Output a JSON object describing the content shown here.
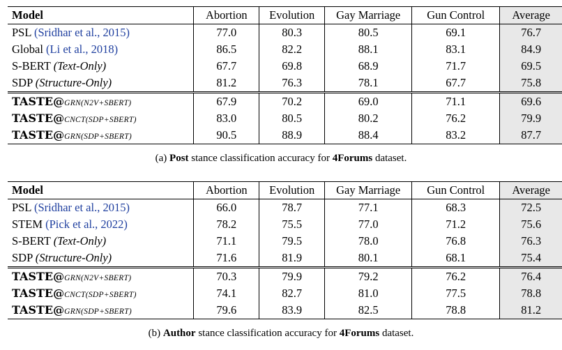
{
  "columns": [
    "Model",
    "Abortion",
    "Evolution",
    "Gay Marriage",
    "Gun Control",
    "Average"
  ],
  "table_a": {
    "rows": [
      {
        "name": "PSL ",
        "cite": "(Sridhar et al., 2015)",
        "values": [
          "77.0",
          "80.3",
          "80.5",
          "69.1",
          "76.7"
        ]
      },
      {
        "name": "Global ",
        "cite": "(Li et al., 2018)",
        "values": [
          "86.5",
          "82.2",
          "88.1",
          "83.1",
          "84.9"
        ]
      },
      {
        "name": "S-BERT ",
        "note": "(Text-Only)",
        "values": [
          "67.7",
          "69.8",
          "68.9",
          "71.7",
          "69.5"
        ]
      },
      {
        "name": "SDP ",
        "note": "(Structure-Only)",
        "values": [
          "81.2",
          "76.3",
          "78.1",
          "67.7",
          "75.8"
        ]
      },
      {
        "taste": "TASTE@",
        "sub": "GRN(N2V+SBERT)",
        "values": [
          "67.9",
          "70.2",
          "69.0",
          "71.1",
          "69.6"
        ]
      },
      {
        "taste": "TASTE@",
        "sub": "CNCT(SDP+SBERT)",
        "values": [
          "83.0",
          "80.5",
          "80.2",
          "76.2",
          "79.9"
        ]
      },
      {
        "taste": "TASTE@",
        "sub": "GRN(SDP+SBERT)",
        "values": [
          "90.5",
          "88.9",
          "88.4",
          "83.2",
          "87.7"
        ]
      }
    ],
    "caption": {
      "prefix": "(a) ",
      "bold1": "Post",
      "middle": " stance classification accuracy for ",
      "bold2": "4Forums",
      "suffix": " dataset."
    }
  },
  "table_b": {
    "rows": [
      {
        "name": "PSL ",
        "cite": "(Sridhar et al., 2015)",
        "values": [
          "66.0",
          "78.7",
          "77.1",
          "68.3",
          "72.5"
        ]
      },
      {
        "name": "STEM ",
        "cite": "(Pick et al., 2022)",
        "values": [
          "78.2",
          "75.5",
          "77.0",
          "71.2",
          "75.6"
        ]
      },
      {
        "name": "S-BERT ",
        "note": "(Text-Only)",
        "values": [
          "71.1",
          "79.5",
          "78.0",
          "76.8",
          "76.3"
        ]
      },
      {
        "name": "SDP ",
        "note": "(Structure-Only)",
        "values": [
          "71.6",
          "81.9",
          "80.1",
          "68.1",
          "75.4"
        ]
      },
      {
        "taste": "TASTE@",
        "sub": "GRN(N2V+SBERT)",
        "values": [
          "70.3",
          "79.9",
          "79.2",
          "76.2",
          "76.4"
        ]
      },
      {
        "taste": "TASTE@",
        "sub": "CNCT(SDP+SBERT)",
        "values": [
          "74.1",
          "82.7",
          "81.0",
          "77.5",
          "78.8"
        ]
      },
      {
        "taste": "TASTE@",
        "sub": "GRN(SDP+SBERT)",
        "values": [
          "79.6",
          "83.9",
          "82.5",
          "78.8",
          "81.2"
        ]
      }
    ],
    "caption": {
      "prefix": "(b) ",
      "bold1": "Author",
      "middle": " stance classification accuracy for ",
      "bold2": "4Forums",
      "suffix": " dataset."
    }
  }
}
